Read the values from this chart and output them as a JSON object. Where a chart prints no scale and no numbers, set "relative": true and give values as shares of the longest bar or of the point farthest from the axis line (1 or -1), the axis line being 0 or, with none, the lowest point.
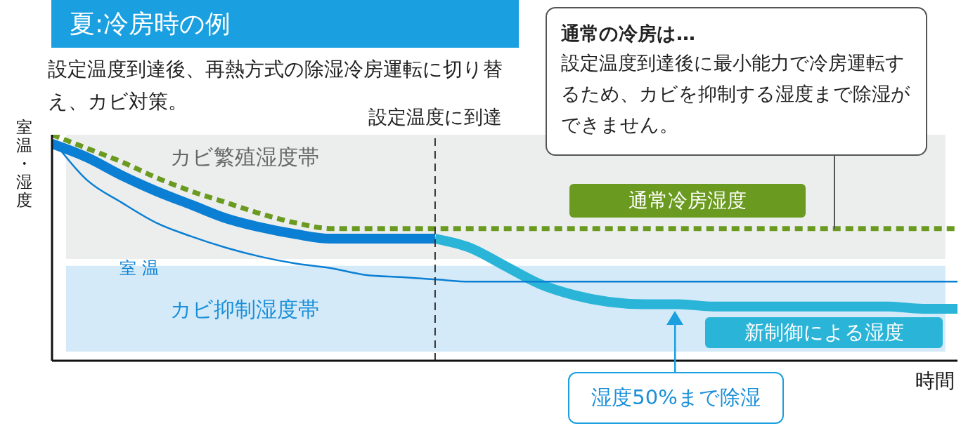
{
  "chart_data": {
    "type": "line",
    "relative": true,
    "title": "夏:冷房時の例",
    "subtitle": "設定温度到達後、再熱方式の除湿冷房運転に切り替え、カビ対策。",
    "ylabel": "室温・湿度",
    "xlabel": "時間",
    "categories": [
      null,
      null,
      null,
      null,
      null,
      null,
      null,
      null,
      null,
      null,
      null,
      null,
      null,
      null,
      null,
      null,
      null,
      null,
      null,
      null,
      null,
      null,
      null,
      null,
      null,
      null,
      null
    ],
    "series": [
      {
        "name": "通常冷房湿度",
        "color": "#6a9a1f",
        "line_style": "dashed",
        "values": [
          1,
          0.94,
          0.88,
          0.81,
          0.75,
          0.7,
          0.65,
          0.61,
          0.585,
          0.585,
          0.585,
          0.585,
          0.585,
          0.585,
          0.585,
          0.585,
          0.585,
          0.585,
          0.585,
          0.585,
          0.585,
          0.585,
          0.585,
          0.585,
          0.585,
          0.585,
          0.585
        ]
      },
      {
        "color": "#0a7fd3",
        "values": [
          0.96,
          0.9,
          0.82,
          0.75,
          0.69,
          0.63,
          0.59,
          0.56,
          0.54,
          0.54,
          0.54,
          0.54,
          null,
          null,
          null,
          null,
          null,
          null,
          null,
          null,
          null,
          null,
          null,
          null,
          null,
          null,
          null
        ]
      },
      {
        "name": "新制御による湿度",
        "color": "#2ab5d8",
        "values": [
          null,
          null,
          null,
          null,
          null,
          null,
          null,
          null,
          null,
          null,
          null,
          0.54,
          0.5,
          0.42,
          0.34,
          0.29,
          0.26,
          0.25,
          0.25,
          0.24,
          0.24,
          0.24,
          0.24,
          0.24,
          0.24,
          0.23,
          0.23
        ]
      },
      {
        "name": "室 温",
        "color": "#0a7fd3",
        "values": [
          0.98,
          0.8,
          0.7,
          0.61,
          0.55,
          0.5,
          0.46,
          0.43,
          0.41,
          0.38,
          0.37,
          0.36,
          0.35,
          0.35,
          0.35,
          0.35,
          0.35,
          0.35,
          0.35,
          0.35,
          0.35,
          0.35,
          0.35,
          0.35,
          0.35,
          0.35,
          0.35
        ]
      }
    ],
    "bands": [
      {
        "axis": "y",
        "from": 0.45,
        "to": 1,
        "label": "カビ繁殖湿度帯",
        "color": "#eceeee"
      },
      {
        "axis": "y",
        "from": 0.04,
        "to": 0.42,
        "label": "カビ抑制湿度帯",
        "color": "#d4eaf8"
      }
    ],
    "marker": "none",
    "annotations": [
      "通常の冷房は…",
      "設定温度到達後に最小能力で冷房運転するため、カビを抑制する湿度まで除湿ができません。",
      "湿度50%まで除湿",
      "設定温度に到達"
    ]
  }
}
